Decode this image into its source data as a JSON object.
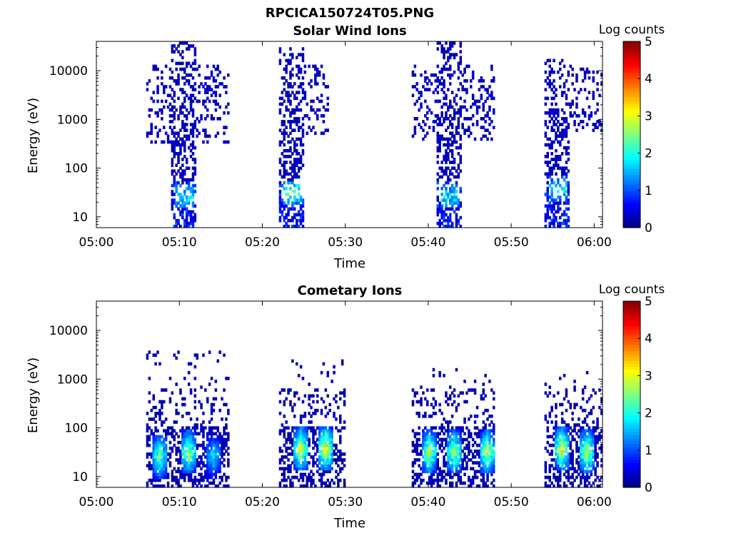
{
  "figure": {
    "title": "RPCICA150724T05.PNG"
  },
  "chart_data": [
    {
      "type": "heatmap",
      "title": "Solar Wind Ions",
      "xlabel": "Time",
      "ylabel": "Energy (eV)",
      "xlim": [
        "05:00",
        "06:01"
      ],
      "xticks": [
        "05:00",
        "05:10",
        "05:20",
        "05:30",
        "05:40",
        "05:50",
        "06:00"
      ],
      "ylim": [
        6,
        40000
      ],
      "yscale": "log",
      "yticks": [
        "10",
        "100",
        "1000",
        "10000"
      ],
      "colorbar": {
        "label": "Log counts",
        "range": [
          0,
          5
        ],
        "ticks": [
          "0",
          "1",
          "2",
          "3",
          "4",
          "5"
        ],
        "colormap": "jet"
      },
      "bursts": [
        {
          "core_start": "05:09",
          "core_end": "05:12",
          "halo_start": "05:06",
          "halo_end": "05:16",
          "halo_emin": 300,
          "max_energy": 35000,
          "peak_energy": 25,
          "peak_log_counts": 2.3
        },
        {
          "core_start": "05:22",
          "core_end": "05:25",
          "halo_start": "05:22",
          "halo_end": "05:28",
          "halo_emin": 400,
          "max_energy": 30000,
          "peak_energy": 30,
          "peak_log_counts": 2.8
        },
        {
          "core_start": "05:41",
          "core_end": "05:44",
          "halo_start": "05:38",
          "halo_end": "05:48",
          "halo_emin": 350,
          "max_energy": 35000,
          "peak_energy": 25,
          "peak_log_counts": 2.2
        },
        {
          "core_start": "05:54",
          "core_end": "05:57",
          "halo_start": "05:54",
          "halo_end": "06:01",
          "halo_emin": 500,
          "max_energy": 20000,
          "peak_energy": 35,
          "peak_log_counts": 2.3
        }
      ]
    },
    {
      "type": "heatmap",
      "title": "Cometary Ions",
      "xlabel": "Time",
      "ylabel": "Energy (eV)",
      "xlim": [
        "05:00",
        "06:01"
      ],
      "xticks": [
        "05:00",
        "05:10",
        "05:20",
        "05:30",
        "05:40",
        "05:50",
        "06:00"
      ],
      "ylim": [
        6,
        40000
      ],
      "yscale": "log",
      "yticks": [
        "10",
        "100",
        "1000",
        "10000"
      ],
      "colorbar": {
        "label": "Log counts",
        "range": [
          0,
          5
        ],
        "ticks": [
          "0",
          "1",
          "2",
          "3",
          "4",
          "5"
        ],
        "colormap": "jet"
      },
      "bursts": [
        {
          "start": "05:06",
          "end": "05:16",
          "max_energy": 3500,
          "peaks": [
            {
              "time": "05:07.5",
              "energy": 25,
              "log_counts": 3.0
            },
            {
              "time": "05:11",
              "energy": 30,
              "log_counts": 3.3
            },
            {
              "time": "05:14",
              "energy": 25,
              "log_counts": 2.2
            }
          ]
        },
        {
          "start": "05:22",
          "end": "05:30",
          "max_energy": 2400,
          "peaks": [
            {
              "time": "05:24.5",
              "energy": 35,
              "log_counts": 3.6
            },
            {
              "time": "05:27.5",
              "energy": 35,
              "log_counts": 3.8
            }
          ]
        },
        {
          "start": "05:38",
          "end": "05:48",
          "max_energy": 1600,
          "peaks": [
            {
              "time": "05:40",
              "energy": 30,
              "log_counts": 3.4
            },
            {
              "time": "05:43",
              "energy": 30,
              "log_counts": 3.3
            },
            {
              "time": "05:47",
              "energy": 30,
              "log_counts": 3.5
            }
          ]
        },
        {
          "start": "05:54",
          "end": "06:01",
          "max_energy": 1300,
          "peaks": [
            {
              "time": "05:56",
              "energy": 35,
              "log_counts": 3.7
            },
            {
              "time": "05:59",
              "energy": 30,
              "log_counts": 3.5
            }
          ]
        }
      ]
    }
  ]
}
